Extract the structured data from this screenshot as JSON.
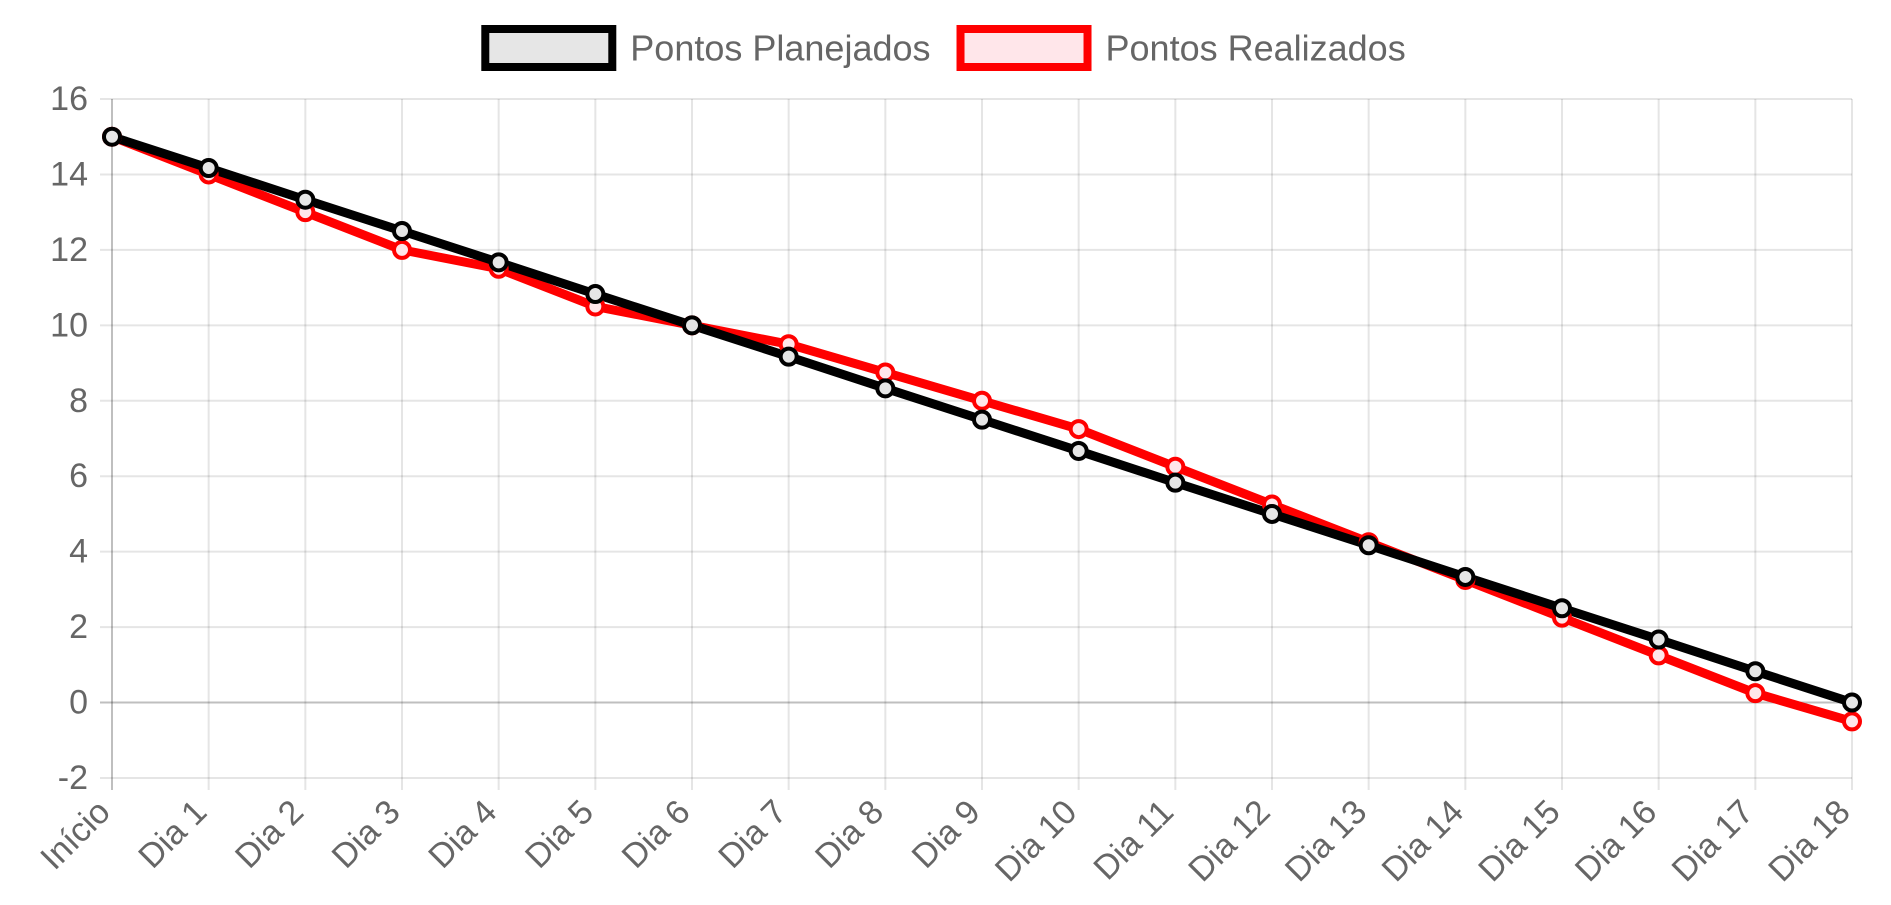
{
  "chart_data": {
    "type": "line",
    "categories": [
      "Início",
      "Dia 1",
      "Dia 2",
      "Dia 3",
      "Dia 4",
      "Dia 5",
      "Dia 6",
      "Dia 7",
      "Dia 8",
      "Dia 9",
      "Dia 10",
      "Dia 11",
      "Dia 12",
      "Dia 13",
      "Dia 14",
      "Dia 15",
      "Dia 16",
      "Dia 17",
      "Dia 18"
    ],
    "series": [
      {
        "name": "Pontos Planejados",
        "color": "#000000",
        "fill": "#e6e6e6",
        "values": [
          15,
          14.17,
          13.33,
          12.5,
          11.67,
          10.83,
          10,
          9.17,
          8.33,
          7.5,
          6.67,
          5.83,
          5,
          4.17,
          3.33,
          2.5,
          1.67,
          0.83,
          0
        ]
      },
      {
        "name": "Pontos Realizados",
        "color": "#ff0000",
        "fill": "#ffe6ea",
        "values": [
          15,
          14,
          13,
          12,
          11.5,
          10.5,
          10,
          9.5,
          8.75,
          8,
          7.25,
          6.25,
          5.25,
          4.25,
          3.25,
          2.25,
          1.25,
          0.25,
          -0.5
        ]
      }
    ],
    "ylim": [
      -2,
      16
    ],
    "yticks": [
      "16",
      "14",
      "12",
      "10",
      "8",
      "6",
      "4",
      "2",
      "0",
      "-2"
    ],
    "grid": true,
    "legend_position": "top",
    "title": "",
    "xlabel": "",
    "ylabel": ""
  }
}
